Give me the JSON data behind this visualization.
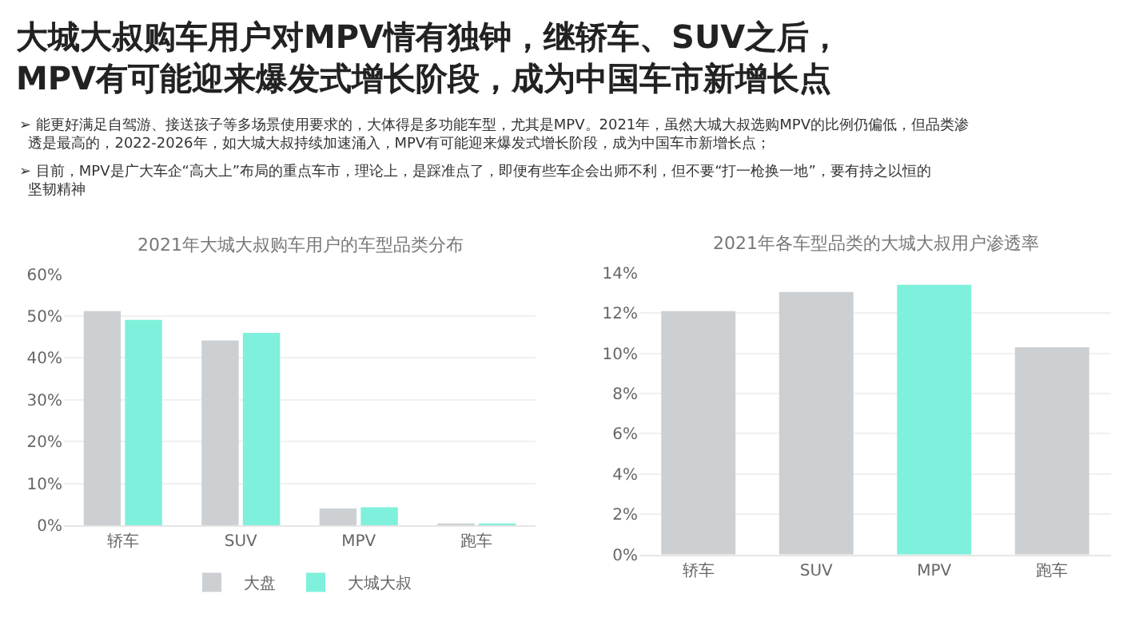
{
  "chart_data": [
    {
      "type": "other",
      "title": "大城大叔购车用户对MPV情有独钟，继轿车、SUV之后，\nMPV有可能迎来爆发式增长阶段，成为中国车市新增长点",
      "annotations": [
        "➢ 能更好满足自驾游、接送孩子等多场景使用要求的，大体得是多功能车型，尤其是MPV。2021年，虽然大城大叔选购MPV的比例仍偏低，但品类渗透是最高的，2022-2026年，如大城大叔持续加速涌入，MPV有可能迎来爆发式增长阶段，成为中国车市新增长点；",
        "➢ 目前，MPV是广大车企“高大上”布局的重点车市，理论上，是踩准点了，即便有些车企会出师不利，但不要“打一枪换一地”，要有持之以恒的坚韧精神"
      ]
    },
    {
      "type": "bar",
      "title": "2021年大城大叔购车用户的车型品类分布",
      "categories": [
        "轿车",
        "SUV",
        "MPV",
        "跑车"
      ],
      "series": [
        {
          "name": "大盘",
          "color": "#cdd0d3",
          "values": [
            51.2,
            44.2,
            4.0,
            0.3
          ]
        },
        {
          "name": "大城大叔",
          "color": "#7ff0dc",
          "values": [
            49.1,
            46.0,
            4.3,
            0.2
          ]
        }
      ],
      "ylim": [
        0,
        60
      ],
      "yticks": [
        {
          "value": 0,
          "label": "0%"
        },
        {
          "value": 10,
          "label": "10%"
        },
        {
          "value": 20,
          "label": "20%"
        },
        {
          "value": 30,
          "label": "30%"
        },
        {
          "value": 40,
          "label": "40%"
        },
        {
          "value": 50,
          "label": "50%"
        },
        {
          "value": 60,
          "label": "60%"
        }
      ],
      "grid": "y",
      "legend": "bottom"
    },
    {
      "type": "bar",
      "title": "2021年各车型品类的大城大叔用户渗透率",
      "categories": [
        "轿车",
        "SUV",
        "MPV",
        "跑车"
      ],
      "values": [
        12.1,
        13.05,
        13.4,
        10.3
      ],
      "colors": [
        "#cdd0d3",
        "#cdd0d3",
        "#7ff0dc",
        "#cdd0d3"
      ],
      "ylim": [
        0,
        14
      ],
      "yticks": [
        {
          "value": 0,
          "label": "0%"
        },
        {
          "value": 2,
          "label": "2%"
        },
        {
          "value": 4,
          "label": "4%"
        },
        {
          "value": 6,
          "label": "6%"
        },
        {
          "value": 8,
          "label": "8%"
        },
        {
          "value": 10,
          "label": "10%"
        },
        {
          "value": 12,
          "label": "12%"
        },
        {
          "value": 14,
          "label": "14%"
        }
      ],
      "grid": "y"
    }
  ]
}
